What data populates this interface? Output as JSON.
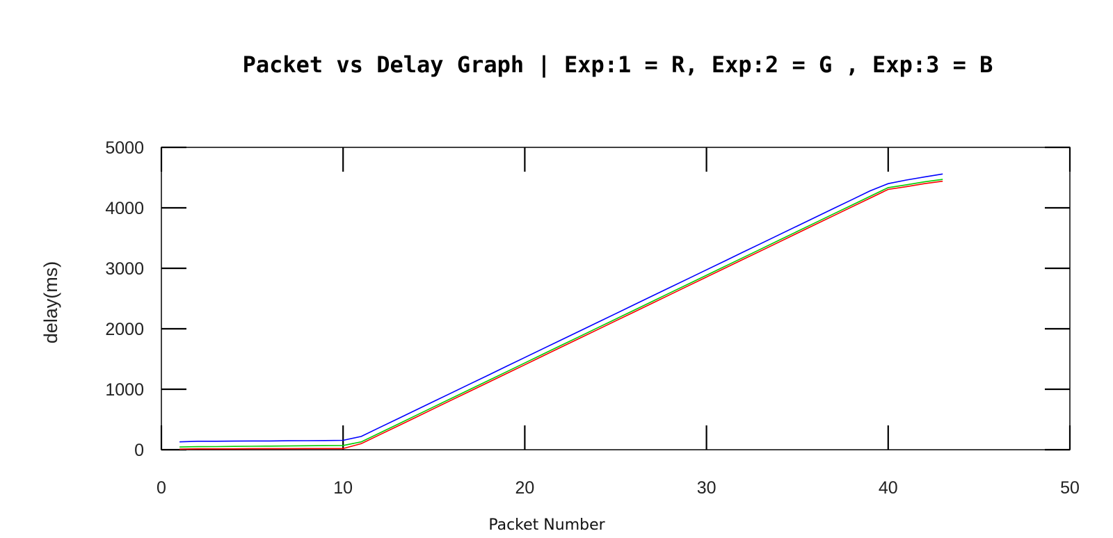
{
  "chart_data": {
    "type": "line",
    "title": "Packet vs Delay Graph | Exp:1 = R, Exp:2 = G , Exp:3 = B",
    "xlabel": "Packet Number",
    "ylabel": "delay(ms)",
    "xlim": [
      0,
      50
    ],
    "ylim": [
      0,
      5000
    ],
    "xticks": [
      0,
      10,
      20,
      30,
      40,
      50
    ],
    "yticks": [
      0,
      1000,
      2000,
      3000,
      4000,
      5000
    ],
    "grid": false,
    "legend": "none",
    "series": [
      {
        "color": "#ff0000",
        "x": [
          1,
          2,
          3,
          4,
          5,
          6,
          7,
          8,
          9,
          10,
          11,
          12,
          13,
          14,
          15,
          16,
          17,
          18,
          19,
          20,
          21,
          22,
          23,
          24,
          25,
          26,
          27,
          28,
          29,
          30,
          31,
          32,
          33,
          34,
          35,
          36,
          37,
          38,
          39,
          40,
          41,
          42,
          43
        ],
        "y": [
          10,
          15,
          15,
          15,
          18,
          18,
          18,
          20,
          20,
          20,
          100,
          245,
          390,
          535,
          680,
          825,
          970,
          1115,
          1260,
          1405,
          1550,
          1695,
          1840,
          1985,
          2130,
          2275,
          2420,
          2565,
          2710,
          2855,
          3000,
          3145,
          3290,
          3435,
          3580,
          3725,
          3870,
          4015,
          4160,
          4305,
          4350,
          4400,
          4440
        ]
      },
      {
        "color": "#00cc00",
        "x": [
          1,
          2,
          3,
          4,
          5,
          6,
          7,
          8,
          9,
          10,
          11,
          12,
          13,
          14,
          15,
          16,
          17,
          18,
          19,
          20,
          21,
          22,
          23,
          24,
          25,
          26,
          27,
          28,
          29,
          30,
          31,
          32,
          33,
          34,
          35,
          36,
          37,
          38,
          39,
          40,
          41,
          42,
          43
        ],
        "y": [
          45,
          50,
          52,
          55,
          58,
          60,
          62,
          65,
          68,
          70,
          130,
          275,
          420,
          565,
          710,
          855,
          1000,
          1145,
          1290,
          1435,
          1580,
          1725,
          1870,
          2015,
          2160,
          2305,
          2450,
          2595,
          2740,
          2885,
          3030,
          3175,
          3320,
          3465,
          3610,
          3755,
          3900,
          4045,
          4190,
          4335,
          4380,
          4430,
          4470
        ]
      },
      {
        "color": "#0000ff",
        "x": [
          1,
          2,
          3,
          4,
          5,
          6,
          7,
          8,
          9,
          10,
          11,
          12,
          13,
          14,
          15,
          16,
          17,
          18,
          19,
          20,
          21,
          22,
          23,
          24,
          25,
          26,
          27,
          28,
          29,
          30,
          31,
          32,
          33,
          34,
          35,
          36,
          37,
          38,
          39,
          40,
          41,
          42,
          43
        ],
        "y": [
          130,
          140,
          140,
          142,
          145,
          145,
          148,
          150,
          152,
          155,
          220,
          365,
          510,
          655,
          800,
          945,
          1090,
          1235,
          1380,
          1525,
          1670,
          1815,
          1960,
          2105,
          2250,
          2395,
          2540,
          2685,
          2830,
          2975,
          3120,
          3265,
          3410,
          3555,
          3700,
          3845,
          3990,
          4135,
          4280,
          4400,
          4460,
          4510,
          4560
        ]
      }
    ]
  }
}
